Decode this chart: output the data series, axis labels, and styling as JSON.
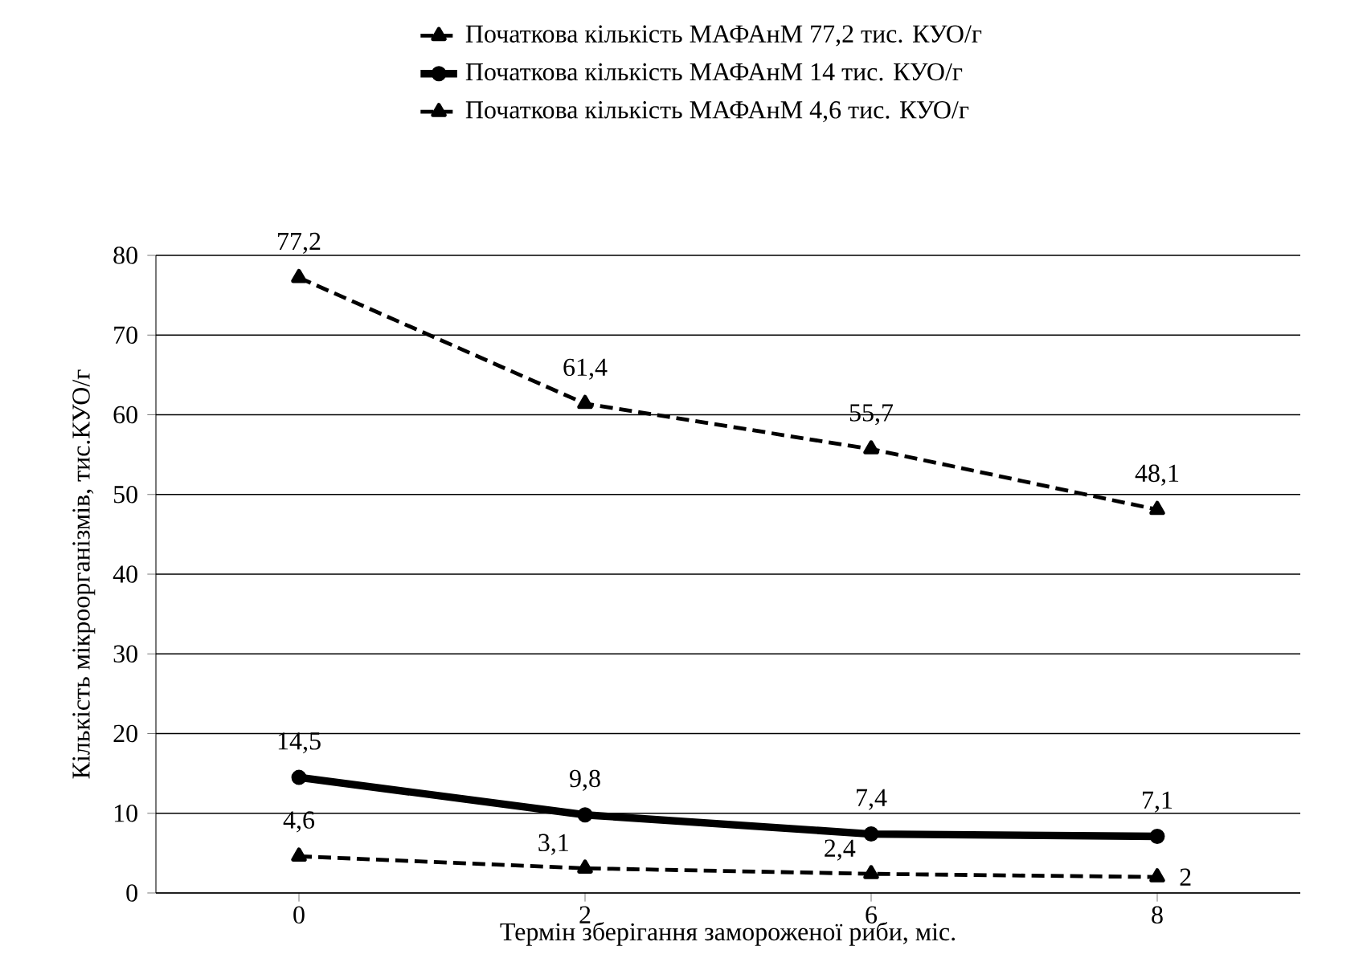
{
  "chart_data": {
    "type": "line",
    "xlabel": "Термін зберігання замороженої риби, міс.",
    "ylabel": "Кількість мікроорганізмів, тис.КУО/г",
    "categories": [
      "0",
      "2",
      "6",
      "8"
    ],
    "series": [
      {
        "name": "Початкова кількість МАФАнМ 77,2 тис. КУО/г",
        "color": "#000000",
        "marker": "triangle",
        "line_style": "dashed",
        "values": [
          77.2,
          61.4,
          55.7,
          48.1
        ],
        "value_labels": [
          "77,2",
          "61,4",
          "55,7",
          "48,1"
        ]
      },
      {
        "name": "Початкова кількість МАФАнМ 14 тис. КУО/г",
        "color": "#000000",
        "marker": "circle",
        "line_style": "solid",
        "values": [
          14.5,
          9.8,
          7.4,
          7.1
        ],
        "value_labels": [
          "14,5",
          "9,8",
          "7,4",
          "7,1"
        ]
      },
      {
        "name": "Початкова кількість МАФАнМ 4,6 тис. КУО/г",
        "color": "#000000",
        "marker": "triangle",
        "line_style": "dashed",
        "values": [
          4.6,
          3.1,
          2.4,
          2
        ],
        "value_labels": [
          "4,6",
          "3,1",
          "2,4",
          "2"
        ]
      }
    ],
    "ylim": [
      0,
      80
    ],
    "yticks": [
      0,
      10,
      20,
      30,
      40,
      50,
      60,
      70,
      80
    ],
    "grid": "y",
    "legend": "top"
  }
}
